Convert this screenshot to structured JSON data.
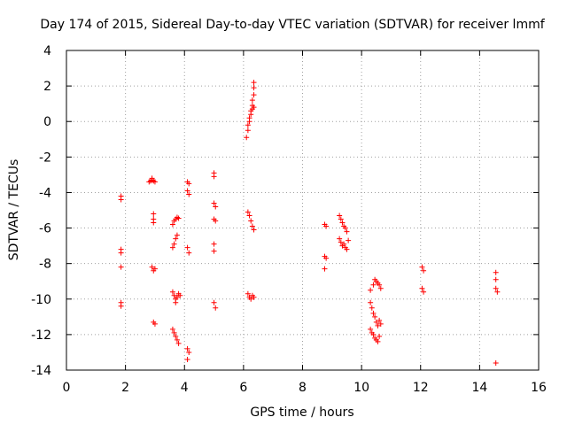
{
  "chart_data": {
    "type": "scatter",
    "title": "Day 174 of 2015, Sidereal Day-to-day VTEC variation (SDTVAR) for receiver lmmf",
    "xlabel": "GPS time / hours",
    "ylabel": "SDTVAR / TECUs",
    "xlim": [
      0,
      16
    ],
    "ylim": [
      -14,
      4
    ],
    "xticks": [
      0,
      2,
      4,
      6,
      8,
      10,
      12,
      14,
      16
    ],
    "yticks": [
      -14,
      -12,
      -10,
      -8,
      -6,
      -4,
      -2,
      0,
      2,
      4
    ],
    "grid": true,
    "marker": "plus",
    "color": "#ff0000",
    "series": [
      {
        "name": "SDTVAR",
        "points": [
          [
            1.85,
            -4.2
          ],
          [
            1.85,
            -4.4
          ],
          [
            1.85,
            -7.2
          ],
          [
            1.85,
            -7.4
          ],
          [
            1.85,
            -8.2
          ],
          [
            1.85,
            -10.2
          ],
          [
            1.85,
            -10.4
          ],
          [
            2.8,
            -3.4
          ],
          [
            2.85,
            -3.35
          ],
          [
            2.9,
            -3.3
          ],
          [
            2.95,
            -3.35
          ],
          [
            3.0,
            -3.4
          ],
          [
            2.9,
            -3.2
          ],
          [
            2.95,
            -5.2
          ],
          [
            2.95,
            -5.5
          ],
          [
            2.95,
            -5.7
          ],
          [
            2.9,
            -8.2
          ],
          [
            3.0,
            -8.3
          ],
          [
            2.95,
            -8.4
          ],
          [
            2.95,
            -11.3
          ],
          [
            3.0,
            -11.4
          ],
          [
            3.6,
            -5.8
          ],
          [
            3.65,
            -5.6
          ],
          [
            3.7,
            -5.5
          ],
          [
            3.75,
            -5.4
          ],
          [
            3.8,
            -5.45
          ],
          [
            3.6,
            -7.1
          ],
          [
            3.65,
            -6.9
          ],
          [
            3.7,
            -6.6
          ],
          [
            3.75,
            -6.4
          ],
          [
            3.6,
            -9.6
          ],
          [
            3.65,
            -9.8
          ],
          [
            3.7,
            -10.0
          ],
          [
            3.75,
            -9.9
          ],
          [
            3.8,
            -9.7
          ],
          [
            3.85,
            -9.8
          ],
          [
            3.7,
            -10.2
          ],
          [
            3.6,
            -11.7
          ],
          [
            3.65,
            -11.9
          ],
          [
            3.7,
            -12.1
          ],
          [
            3.75,
            -12.3
          ],
          [
            3.8,
            -12.5
          ],
          [
            4.1,
            -3.4
          ],
          [
            4.15,
            -3.5
          ],
          [
            4.1,
            -3.9
          ],
          [
            4.15,
            -4.1
          ],
          [
            4.1,
            -7.1
          ],
          [
            4.15,
            -7.4
          ],
          [
            4.1,
            -12.8
          ],
          [
            4.15,
            -13.0
          ],
          [
            4.1,
            -13.4
          ],
          [
            5.0,
            -2.9
          ],
          [
            5.0,
            -3.1
          ],
          [
            5.0,
            -4.6
          ],
          [
            5.05,
            -4.8
          ],
          [
            5.0,
            -5.5
          ],
          [
            5.05,
            -5.6
          ],
          [
            5.0,
            -6.9
          ],
          [
            5.0,
            -7.3
          ],
          [
            5.0,
            -10.2
          ],
          [
            5.05,
            -10.5
          ],
          [
            6.1,
            -0.9
          ],
          [
            6.15,
            -0.5
          ],
          [
            6.15,
            -0.2
          ],
          [
            6.2,
            0.0
          ],
          [
            6.2,
            0.2
          ],
          [
            6.25,
            0.4
          ],
          [
            6.25,
            0.6
          ],
          [
            6.3,
            0.7
          ],
          [
            6.3,
            0.9
          ],
          [
            6.35,
            0.8
          ],
          [
            6.3,
            1.2
          ],
          [
            6.35,
            1.5
          ],
          [
            6.35,
            1.9
          ],
          [
            6.35,
            2.2
          ],
          [
            6.15,
            -5.1
          ],
          [
            6.2,
            -5.3
          ],
          [
            6.25,
            -5.6
          ],
          [
            6.3,
            -5.9
          ],
          [
            6.35,
            -6.1
          ],
          [
            6.15,
            -9.7
          ],
          [
            6.2,
            -9.9
          ],
          [
            6.25,
            -10.0
          ],
          [
            6.3,
            -9.8
          ],
          [
            6.35,
            -9.9
          ],
          [
            8.75,
            -5.8
          ],
          [
            8.8,
            -5.9
          ],
          [
            8.75,
            -7.6
          ],
          [
            8.8,
            -7.7
          ],
          [
            8.75,
            -8.3
          ],
          [
            9.25,
            -5.3
          ],
          [
            9.3,
            -5.5
          ],
          [
            9.35,
            -5.7
          ],
          [
            9.4,
            -5.9
          ],
          [
            9.45,
            -6.0
          ],
          [
            9.5,
            -6.2
          ],
          [
            9.25,
            -6.6
          ],
          [
            9.3,
            -6.8
          ],
          [
            9.35,
            -7.0
          ],
          [
            9.4,
            -6.9
          ],
          [
            9.45,
            -7.1
          ],
          [
            9.5,
            -7.2
          ],
          [
            9.55,
            -6.7
          ],
          [
            10.3,
            -9.5
          ],
          [
            10.4,
            -9.2
          ],
          [
            10.45,
            -8.9
          ],
          [
            10.5,
            -9.0
          ],
          [
            10.55,
            -9.1
          ],
          [
            10.6,
            -9.2
          ],
          [
            10.65,
            -9.4
          ],
          [
            10.3,
            -10.2
          ],
          [
            10.35,
            -10.5
          ],
          [
            10.4,
            -10.8
          ],
          [
            10.45,
            -11.0
          ],
          [
            10.5,
            -11.3
          ],
          [
            10.55,
            -11.5
          ],
          [
            10.6,
            -11.2
          ],
          [
            10.65,
            -11.4
          ],
          [
            10.3,
            -11.7
          ],
          [
            10.35,
            -11.9
          ],
          [
            10.4,
            -12.0
          ],
          [
            10.45,
            -12.2
          ],
          [
            10.5,
            -12.3
          ],
          [
            10.55,
            -12.4
          ],
          [
            10.6,
            -12.1
          ],
          [
            12.05,
            -8.2
          ],
          [
            12.1,
            -8.4
          ],
          [
            12.05,
            -9.4
          ],
          [
            12.1,
            -9.6
          ],
          [
            14.55,
            -8.5
          ],
          [
            14.55,
            -8.9
          ],
          [
            14.55,
            -9.4
          ],
          [
            14.6,
            -9.6
          ],
          [
            14.55,
            -13.6
          ]
        ]
      }
    ]
  }
}
